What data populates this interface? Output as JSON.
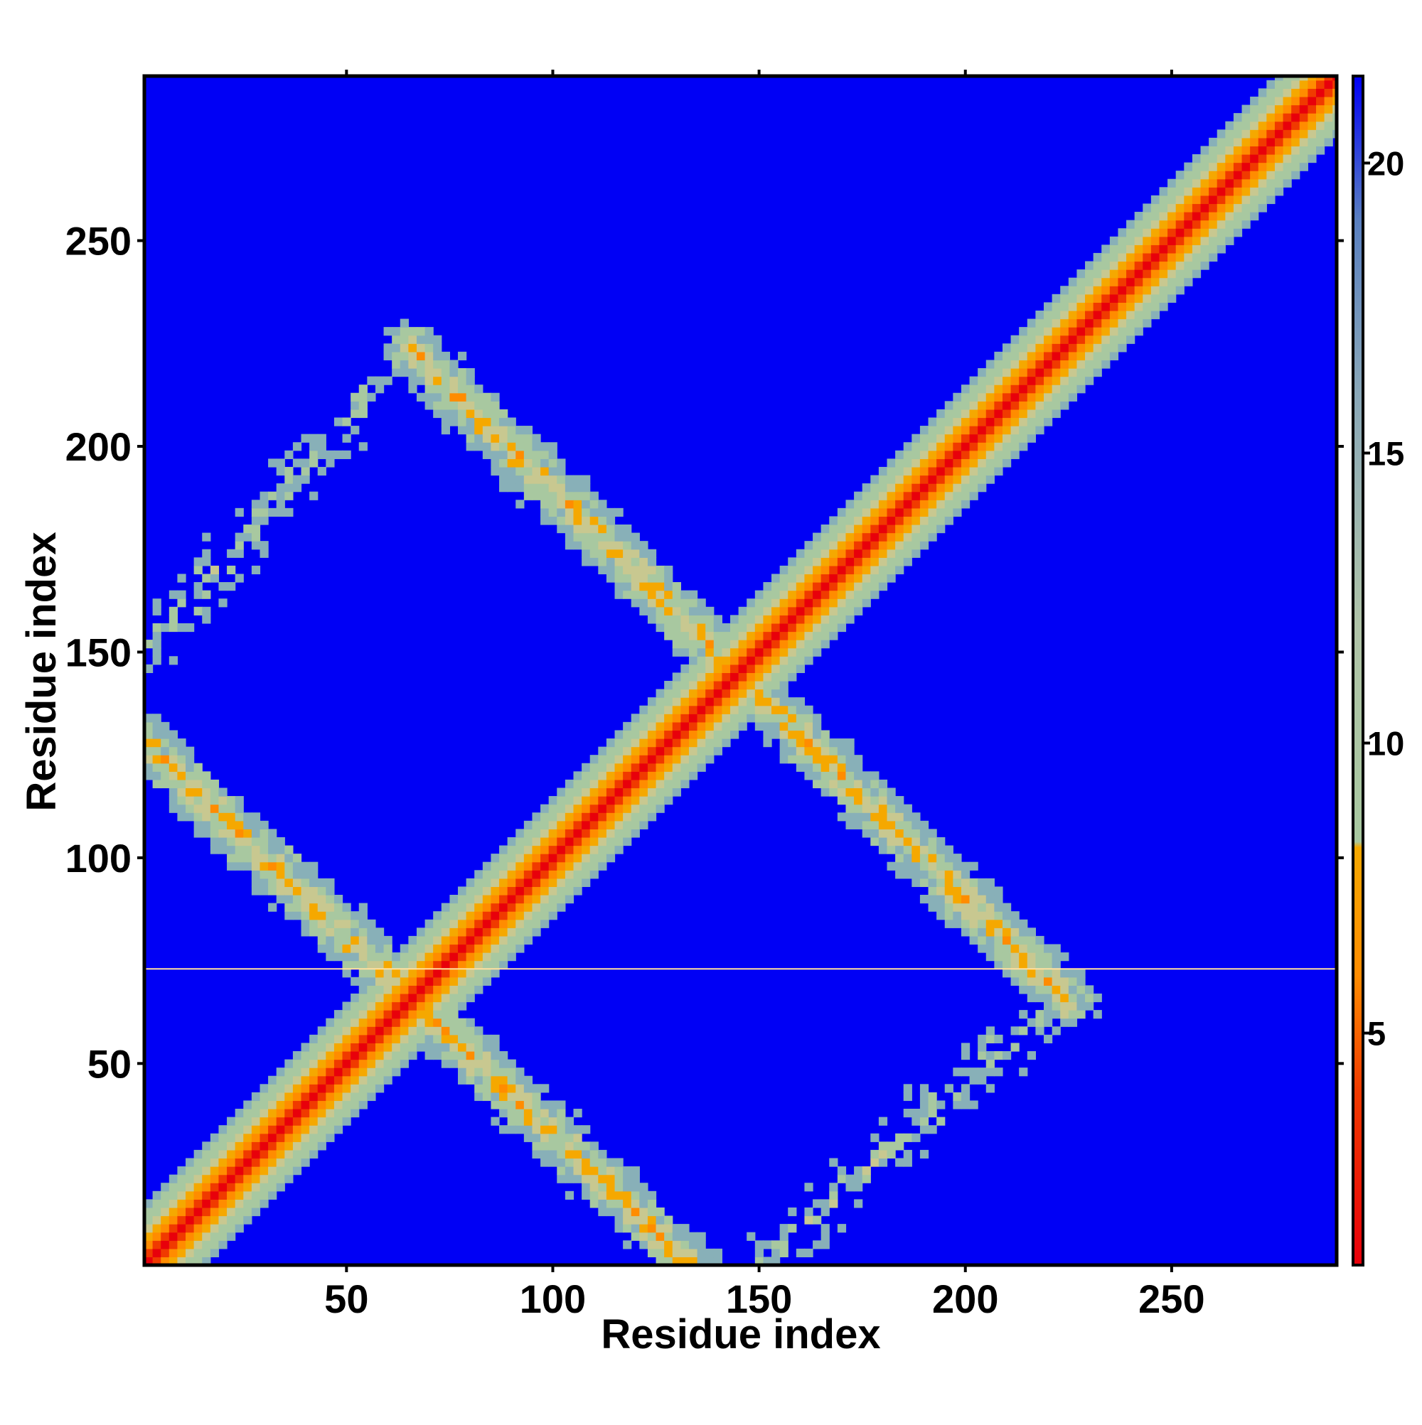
{
  "chart_data": {
    "type": "heatmap",
    "title": "",
    "xlabel": "Residue index",
    "ylabel": "Residue index",
    "xlim": [
      1,
      290
    ],
    "ylim": [
      1,
      290
    ],
    "x_ticks": [
      50,
      100,
      150,
      200,
      250
    ],
    "y_ticks": [
      50,
      100,
      150,
      200,
      250
    ],
    "colorbar": {
      "ticks": [
        5,
        10,
        15,
        20
      ],
      "range": [
        1,
        21.5
      ],
      "colors": {
        "close": "#e8000b",
        "mid": "#ff8c00",
        "near": "#f5a800",
        "band": "#a8c8a0",
        "far": "#0000f5"
      }
    },
    "features": {
      "diagonal": {
        "from": 1,
        "to": 290,
        "core_value": 1,
        "halfwidth_residues": 10
      },
      "antidiagonal_bands": [
        {
          "start": [
            1,
            128
          ],
          "end": [
            133,
            1
          ]
        },
        {
          "start": [
            65,
            224
          ],
          "end": [
            225,
            65
          ]
        }
      ],
      "diagonal_bands": [
        {
          "start": [
            1,
            150
          ],
          "end": [
            60,
            218
          ]
        },
        {
          "start": [
            150,
            1
          ],
          "end": [
            218,
            62
          ]
        }
      ],
      "horizontal_line_at_residue": 73
    }
  }
}
